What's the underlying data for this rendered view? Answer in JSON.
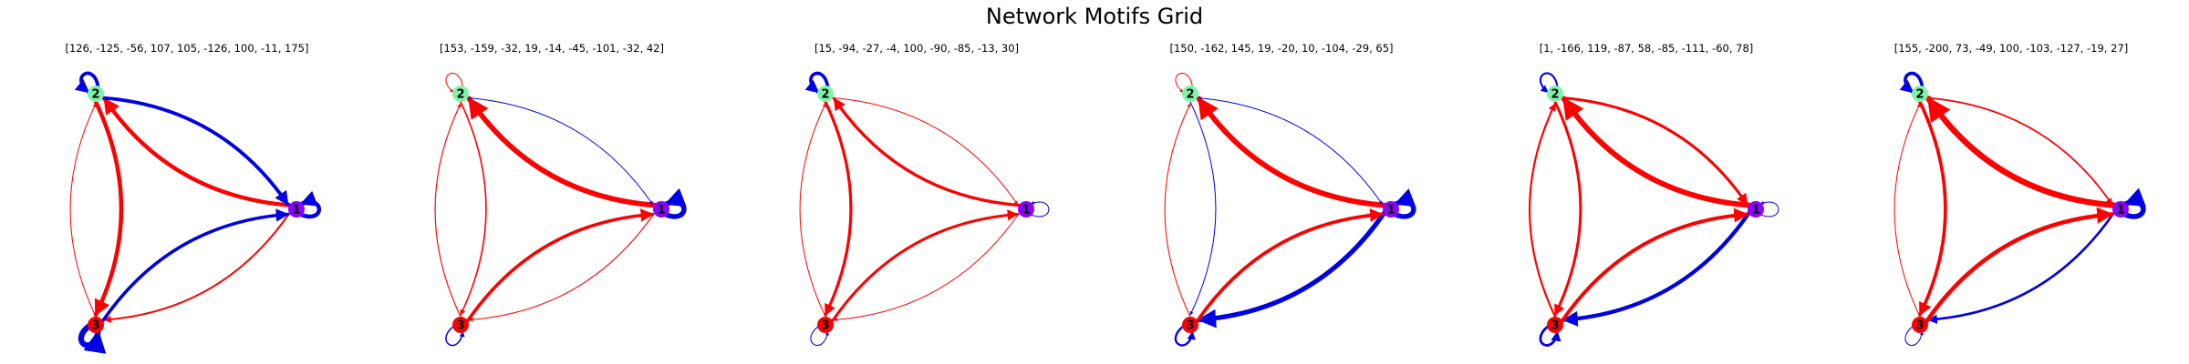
{
  "title": "Network Motifs Grid",
  "colors": {
    "positive": "#0000e6",
    "negative": "#ff0000",
    "node_1": "#8b00ff",
    "node_2": "#7cf5a8",
    "node_3": "#ff0000"
  },
  "node_labels": [
    "1",
    "2",
    "3"
  ],
  "panels": [
    {
      "label": "[126, -125, -56, 107, 105, -126, 100, -11, 175]",
      "weights": [
        126,
        -125,
        -56,
        107,
        105,
        -126,
        100,
        -11,
        175
      ]
    },
    {
      "label": "[153, -159, -32, 19, -14, -45, -101, -32, 42]",
      "weights": [
        153,
        -159,
        -32,
        19,
        -14,
        -45,
        -101,
        -32,
        42
      ]
    },
    {
      "label": "[15, -94, -27, -4, 100, -90, -85, -13, 30]",
      "weights": [
        15,
        -94,
        -27,
        -4,
        100,
        -90,
        -85,
        -13,
        30
      ]
    },
    {
      "label": "[150, -162, 145, 19, -20, 10, -104, -29, 65]",
      "weights": [
        150,
        -162,
        145,
        19,
        -20,
        10,
        -104,
        -29,
        65
      ]
    },
    {
      "label": "[1, -166, 119, -87, 58, -85, -111, -60, 78]",
      "weights": [
        1,
        -166,
        119,
        -87,
        58,
        -85,
        -111,
        -60,
        78
      ]
    },
    {
      "label": "[155, -200, 73, -49, 100, -103, -127, -19, 27]",
      "weights": [
        155,
        -200,
        73,
        -49,
        100,
        -103,
        -127,
        -19,
        27
      ]
    }
  ]
}
